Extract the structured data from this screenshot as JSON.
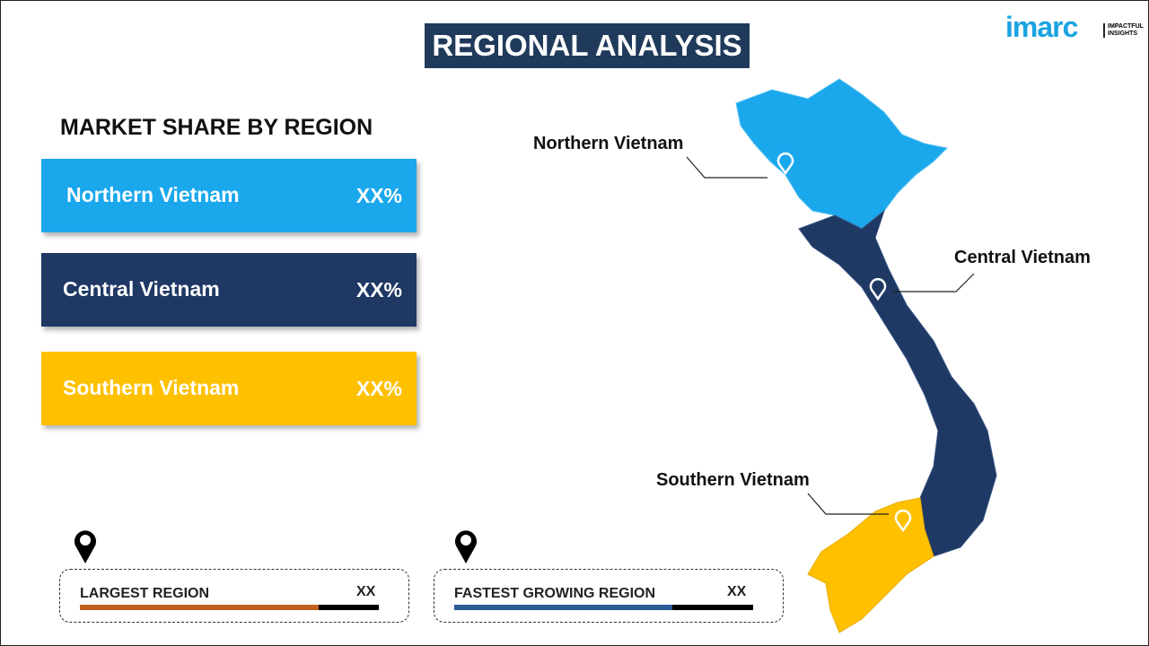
{
  "title": "REGIONAL ANALYSIS",
  "logo": {
    "brand": "imarc",
    "tagline": "IMPACTFUL INSIGHTS"
  },
  "subheading": "MARKET SHARE BY REGION",
  "regions": [
    {
      "name": "Northern Vietnam",
      "value": "XX%",
      "color": "#1aa7ec"
    },
    {
      "name": "Central Vietnam",
      "value": "XX%",
      "color": "#1f3864"
    },
    {
      "name": "Southern Vietnam",
      "value": "XX%",
      "color": "#ffc000"
    }
  ],
  "map_labels": [
    "Northern Vietnam",
    "Central Vietnam",
    "Southern Vietnam"
  ],
  "cards": [
    {
      "label": "LARGEST REGION",
      "value": "XX",
      "fill_color": "#c0621f",
      "fill_percent": 80,
      "icon": "map-pin-icon"
    },
    {
      "label": "FASTEST  GROWING REGION",
      "value": "XX",
      "fill_color": "#2e5a96",
      "fill_percent": 73,
      "icon": "map-pin-icon"
    }
  ]
}
